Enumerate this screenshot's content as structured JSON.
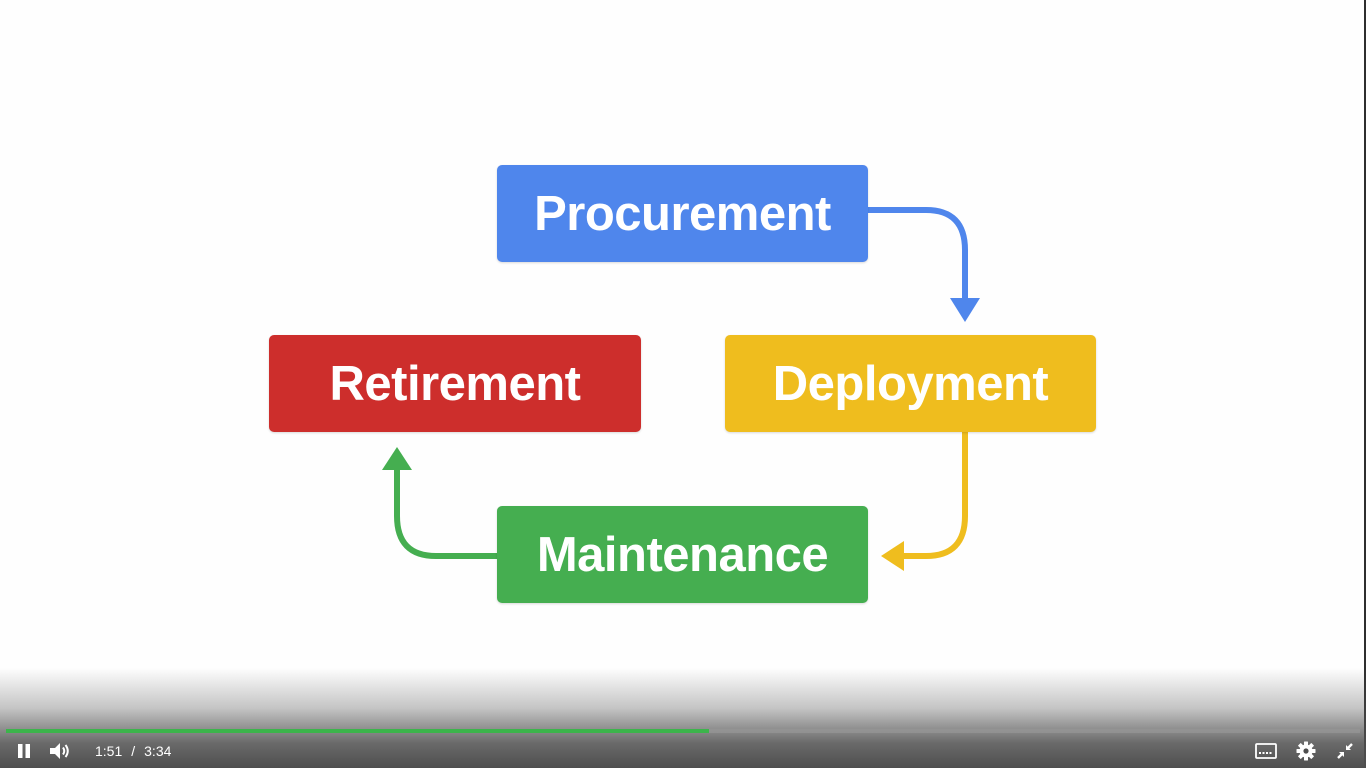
{
  "diagram": {
    "stages": [
      {
        "label": "Procurement",
        "color": "#4f86ec"
      },
      {
        "label": "Deployment",
        "color": "#efbd1e"
      },
      {
        "label": "Maintenance",
        "color": "#45ae50"
      },
      {
        "label": "Retirement",
        "color": "#cd2e2c"
      }
    ],
    "arrow_colors": {
      "procurement_to_deployment": "#4f86ec",
      "deployment_to_maintenance": "#efbd1e",
      "maintenance_to_retirement": "#45ae50"
    }
  },
  "player": {
    "current_time": "1:51",
    "separator": "/",
    "duration": "3:34",
    "progress_fraction": 0.519,
    "progress_color": "#3cb44b",
    "controls": {
      "pause": "pause-icon",
      "volume": "volume-icon",
      "captions": "captions-icon",
      "settings": "gear-icon",
      "exit_fullscreen": "exit-fullscreen-icon"
    }
  }
}
